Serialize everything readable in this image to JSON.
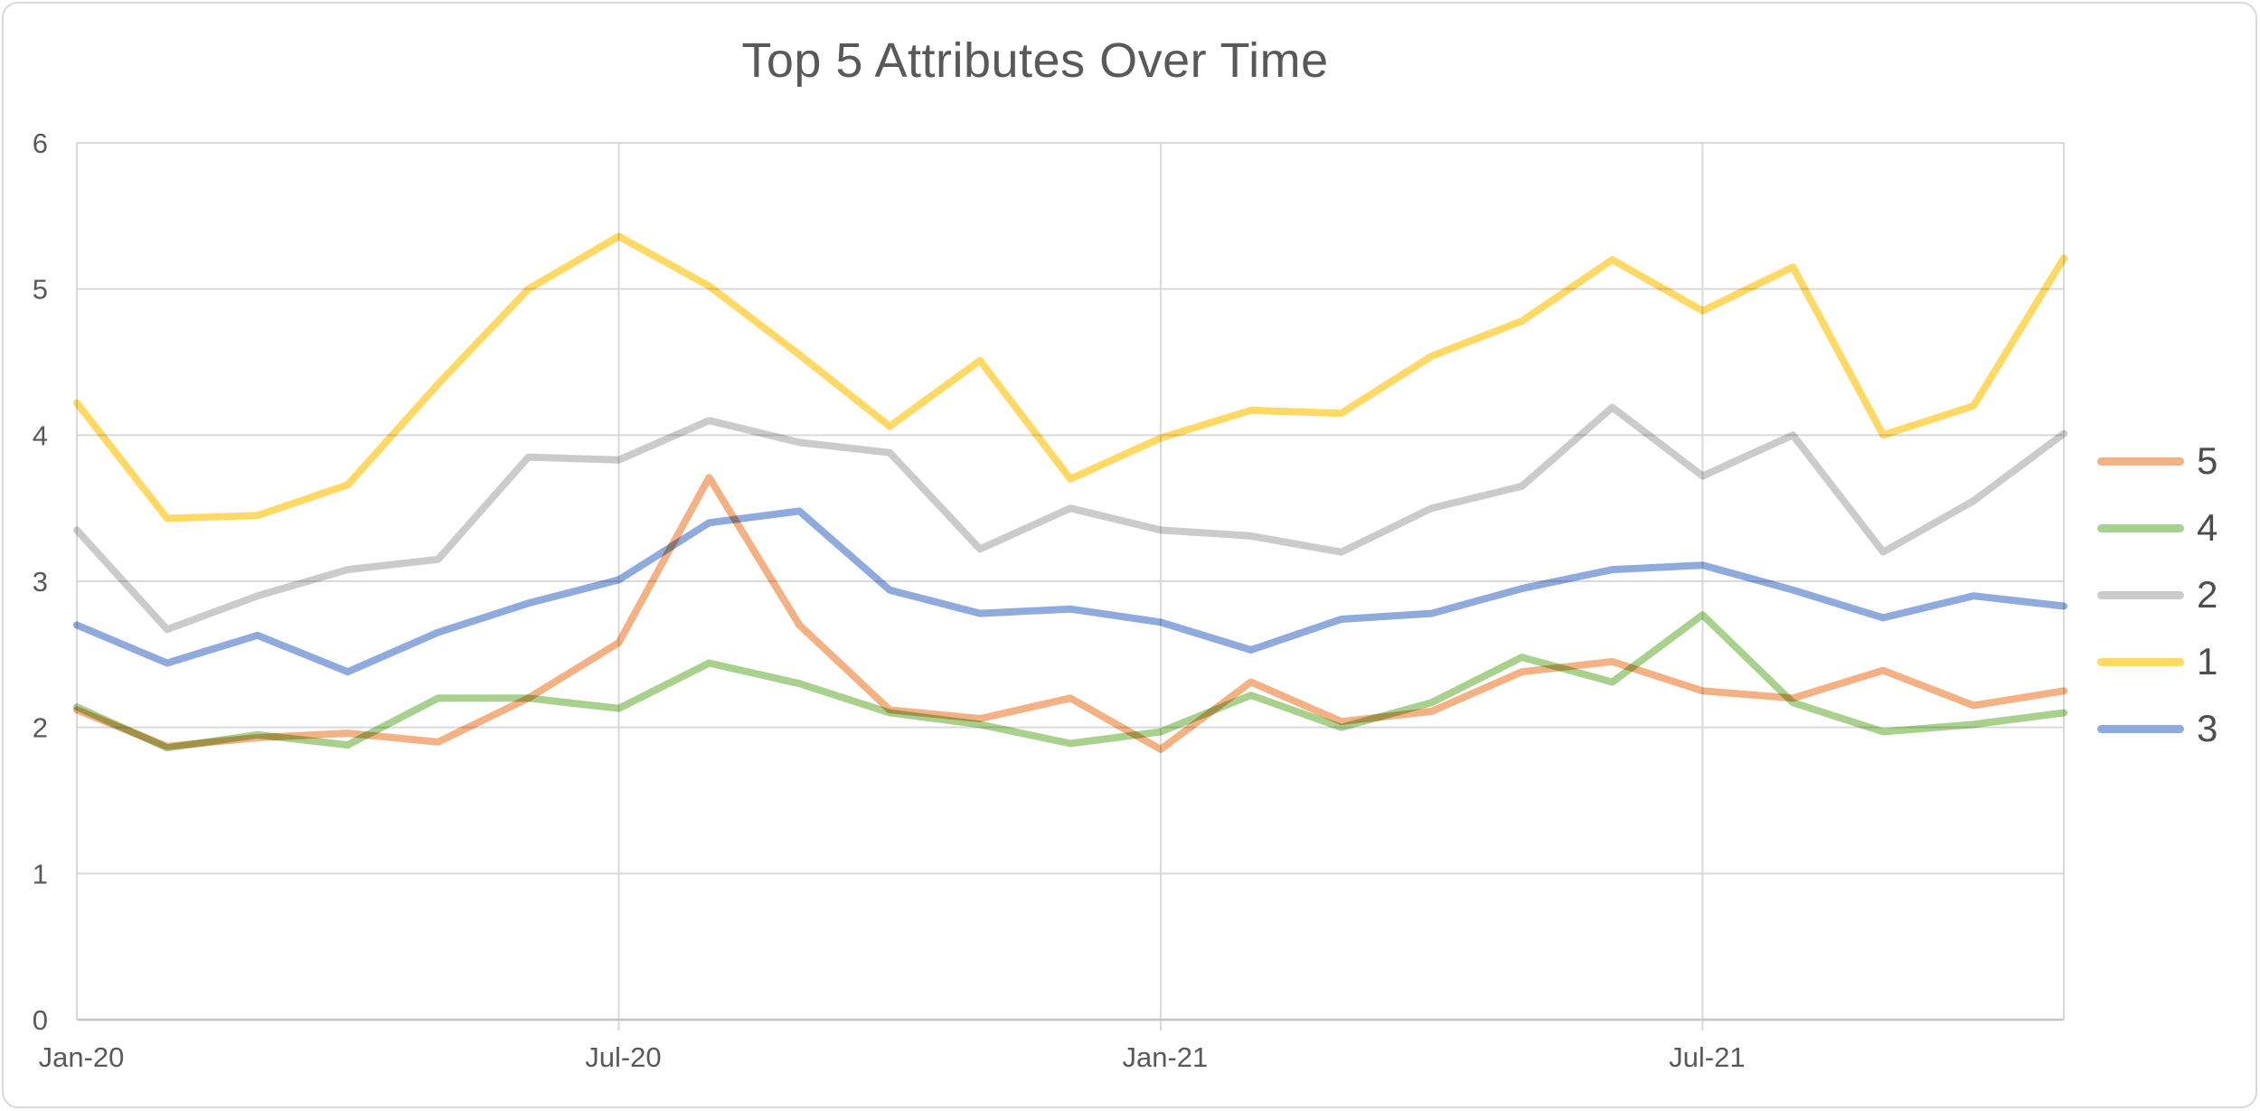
{
  "title": "Top 5 Attributes Over Time",
  "colors": {
    "gridline": "#D9D9D9",
    "axis_line": "#C6C6C6",
    "text": "#595959",
    "legend_text": "#4d4d4d",
    "background": "#FFFFFF",
    "border": "#D9D9D9"
  },
  "y_axis": {
    "min": 0,
    "max": 6,
    "ticks": [
      "0",
      "1",
      "2",
      "3",
      "4",
      "5",
      "6"
    ]
  },
  "x_axis": {
    "tick_labels": [
      "Jan-20",
      "Jul-20",
      "Jan-21",
      "Jul-21"
    ],
    "tick_indices": [
      0,
      6,
      12,
      18
    ],
    "gridline_indices": [
      6,
      12,
      18
    ]
  },
  "legend": {
    "position": "right",
    "items": [
      {
        "label": "5",
        "color": "#F4B183"
      },
      {
        "label": "4",
        "color": "#A9D18E"
      },
      {
        "label": "2",
        "color": "#CBCBCB"
      },
      {
        "label": "1",
        "color": "#FFD966"
      },
      {
        "label": "3",
        "color": "#8FAADC"
      }
    ]
  },
  "chart_data": {
    "type": "line",
    "title": "Top 5 Attributes Over Time",
    "xlabel": "",
    "ylabel": "",
    "ylim": [
      0,
      6
    ],
    "grid": true,
    "legend_position": "right",
    "x": [
      "Jan-20",
      "Feb-20",
      "Mar-20",
      "Apr-20",
      "May-20",
      "Jun-20",
      "Jul-20",
      "Aug-20",
      "Sep-20",
      "Oct-20",
      "Nov-20",
      "Dec-20",
      "Jan-21",
      "Feb-21",
      "Mar-21",
      "Apr-21",
      "May-21",
      "Jun-21",
      "Jul-21",
      "Aug-21",
      "Sep-21",
      "Oct-21",
      "Nov-21"
    ],
    "series": [
      {
        "name": "1",
        "color": "#FFD966",
        "values": [
          4.22,
          3.43,
          3.45,
          3.66,
          4.35,
          5.0,
          5.36,
          5.02,
          4.55,
          4.06,
          4.51,
          3.7,
          3.98,
          4.17,
          4.15,
          4.54,
          4.78,
          5.2,
          4.85,
          5.15,
          4.0,
          4.2,
          5.21
        ]
      },
      {
        "name": "2",
        "color": "#CBCBCB",
        "values": [
          3.35,
          2.67,
          2.9,
          3.08,
          3.15,
          3.85,
          3.83,
          4.1,
          3.95,
          3.88,
          3.22,
          3.5,
          3.35,
          3.31,
          3.2,
          3.5,
          3.65,
          4.19,
          3.72,
          4.0,
          3.2,
          3.55,
          4.01
        ]
      },
      {
        "name": "3",
        "color": "#8FAADC",
        "values": [
          2.7,
          2.44,
          2.63,
          2.38,
          2.65,
          2.85,
          3.01,
          3.4,
          3.48,
          2.94,
          2.78,
          2.81,
          2.72,
          2.53,
          2.74,
          2.78,
          2.95,
          3.08,
          3.11,
          2.94,
          2.75,
          2.9,
          2.83
        ]
      },
      {
        "name": "4",
        "color": "#A9D18E",
        "values": [
          2.14,
          1.86,
          1.95,
          1.88,
          2.2,
          2.2,
          2.13,
          2.44,
          2.3,
          2.1,
          2.02,
          1.89,
          1.97,
          2.22,
          2.0,
          2.17,
          2.48,
          2.31,
          2.77,
          2.17,
          1.97,
          2.02,
          2.1
        ]
      },
      {
        "name": "5",
        "color": "#F4B183",
        "values": [
          2.12,
          1.87,
          1.93,
          1.96,
          1.9,
          2.2,
          2.58,
          3.71,
          2.7,
          2.12,
          2.06,
          2.2,
          1.85,
          2.31,
          2.04,
          2.11,
          2.38,
          2.45,
          2.25,
          2.2,
          2.39,
          2.15,
          2.25
        ]
      }
    ]
  }
}
